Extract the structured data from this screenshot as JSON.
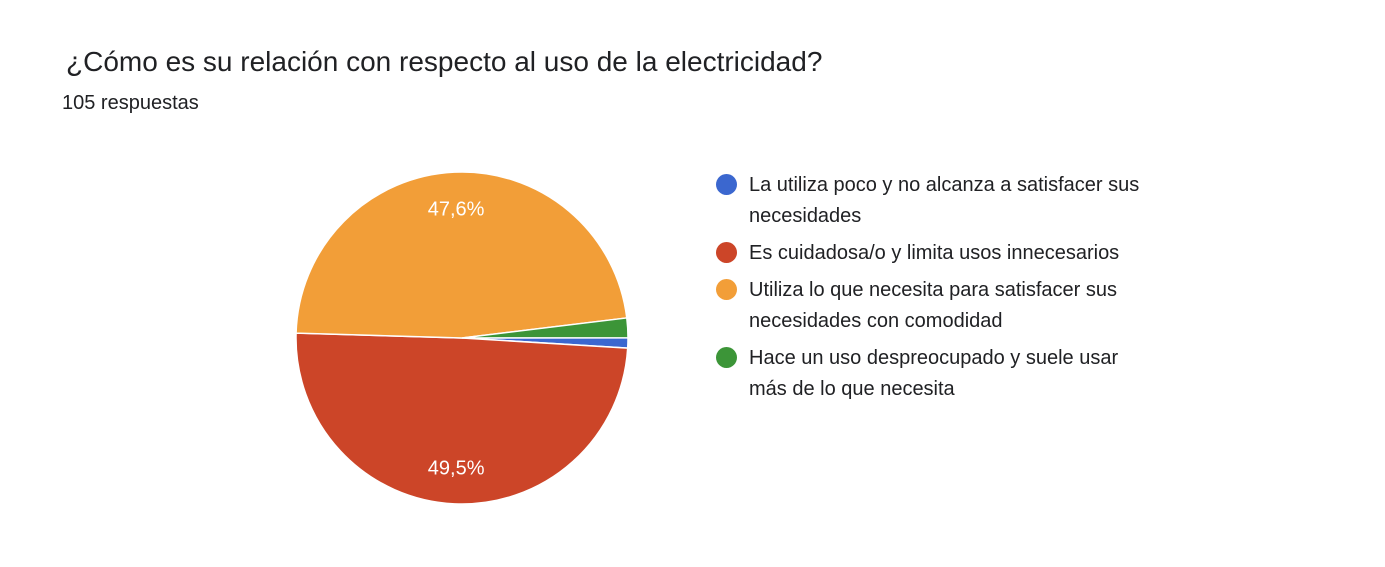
{
  "chart_data": {
    "type": "pie",
    "title": "¿Cómo es su relación con respecto al uso de la electricidad?",
    "subtitle": "105 respuestas",
    "legend_position": "right",
    "slices": [
      {
        "label": "La utiliza poco y no alcanza a satisfacer sus necesidades",
        "percent": 1.0,
        "color": "#3b67cf",
        "data_label": ""
      },
      {
        "label": "Es cuidadosa/o y limita usos innecesarios",
        "percent": 49.5,
        "color": "#cc4528",
        "data_label": "49,5%"
      },
      {
        "label": "Utiliza lo que necesita para satisfacer sus necesidades con comodidad",
        "percent": 47.6,
        "color": "#f29e38",
        "data_label": "47,6%"
      },
      {
        "label": "Hace un uso despreocupado y suele usar más de lo que necesita",
        "percent": 1.9,
        "color": "#3c9538",
        "data_label": ""
      }
    ]
  }
}
